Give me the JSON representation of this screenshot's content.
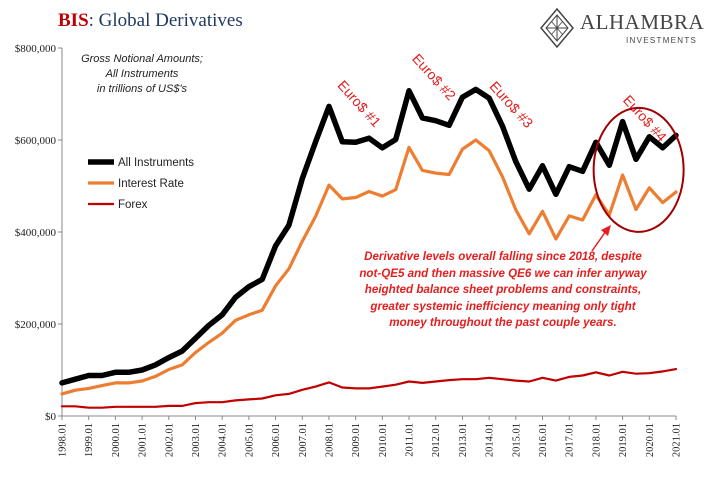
{
  "title": {
    "accent": "BIS",
    "rest": ": Global Derivatives"
  },
  "subtitle": [
    "Gross Notional Amounts;",
    "All Instruments",
    "in trillions of US$'s"
  ],
  "logo": {
    "name": "ALHAMBRA",
    "sub": "INVESTMENTS"
  },
  "note": [
    "Derivative levels overall falling since 2018, despite",
    "not-QE5 and then massive QE6 we can infer anyway",
    "heighted balance sheet problems and constraints,",
    "greater systemic inefficiency meaning only tight",
    "money throughout the past couple years."
  ],
  "chart_data": {
    "type": "line",
    "ylim": [
      0,
      800000
    ],
    "yticks": [
      0,
      200000,
      400000,
      600000,
      800000
    ],
    "ytick_labels": [
      "$0",
      "$200,000",
      "$400,000",
      "$600,000",
      "$800,000"
    ],
    "xtick_labels": [
      "1998.01",
      "1999.01",
      "2000.01",
      "2001.01",
      "2002.01",
      "2003.01",
      "2004.01",
      "2005.01",
      "2006.01",
      "2007.01",
      "2008.01",
      "2009.01",
      "2010.01",
      "2011.01",
      "2012.01",
      "2013.01",
      "2014.01",
      "2015.01",
      "2016.01",
      "2017.01",
      "2018.01",
      "2019.01",
      "2020.01",
      "2021.01"
    ],
    "legend_position": "left",
    "x": [
      1998.0,
      1998.5,
      1999.0,
      1999.5,
      2000.0,
      2000.5,
      2001.0,
      2001.5,
      2002.0,
      2002.5,
      2003.0,
      2003.5,
      2004.0,
      2004.5,
      2005.0,
      2005.5,
      2006.0,
      2006.5,
      2007.0,
      2007.5,
      2008.0,
      2008.5,
      2009.0,
      2009.5,
      2010.0,
      2010.5,
      2011.0,
      2011.5,
      2012.0,
      2012.5,
      2013.0,
      2013.5,
      2014.0,
      2014.5,
      2015.0,
      2015.5,
      2016.0,
      2016.5,
      2017.0,
      2017.5,
      2018.0,
      2018.5,
      2019.0,
      2019.5,
      2020.0,
      2020.5,
      2021.0
    ],
    "series": [
      {
        "name": "All Instruments",
        "color": "#000000",
        "width": 5.5,
        "values": [
          72000,
          80000,
          88000,
          88000,
          95000,
          95000,
          100000,
          111000,
          127000,
          141000,
          169000,
          197000,
          220000,
          258000,
          281000,
          297000,
          370000,
          415000,
          516000,
          596000,
          673000,
          596000,
          595000,
          604000,
          583000,
          601000,
          707000,
          648000,
          642000,
          632000,
          693000,
          710000,
          691000,
          630000,
          553000,
          493000,
          544000,
          482000,
          542000,
          532000,
          595000,
          545000,
          640000,
          558000,
          607000,
          583000,
          610000
        ]
      },
      {
        "name": "Interest Rate",
        "color": "#ed7d31",
        "width": 3.2,
        "values": [
          48000,
          56000,
          60000,
          66000,
          72000,
          72000,
          76000,
          86000,
          101000,
          111000,
          138000,
          160000,
          180000,
          208000,
          220000,
          230000,
          283000,
          320000,
          380000,
          434000,
          502000,
          472000,
          475000,
          488000,
          478000,
          492000,
          584000,
          534000,
          528000,
          525000,
          580000,
          600000,
          577000,
          520000,
          448000,
          396000,
          445000,
          385000,
          435000,
          426000,
          481000,
          437000,
          524000,
          449000,
          496000,
          464000,
          487000
        ]
      },
      {
        "name": "Forex",
        "color": "#c00000",
        "width": 2.2,
        "values": [
          21000,
          21000,
          18000,
          18000,
          20000,
          20000,
          20000,
          20000,
          22000,
          22000,
          28000,
          30000,
          30000,
          34000,
          36000,
          38000,
          45000,
          48000,
          57000,
          64000,
          73000,
          62000,
          60000,
          60000,
          64000,
          68000,
          75000,
          72000,
          75000,
          78000,
          80000,
          80000,
          83000,
          80000,
          77000,
          75000,
          83000,
          77000,
          85000,
          88000,
          95000,
          88000,
          96000,
          92000,
          93000,
          97000,
          102000
        ]
      }
    ],
    "annotations": [
      {
        "text": "Euro$ #1",
        "x": 2009.0,
        "y": 672000
      },
      {
        "text": "Euro$ #2",
        "x": 2011.8,
        "y": 730000
      },
      {
        "text": "Euro$ #3",
        "x": 2014.7,
        "y": 670000
      },
      {
        "text": "Euro$ #4",
        "x": 2019.7,
        "y": 640000
      }
    ]
  }
}
